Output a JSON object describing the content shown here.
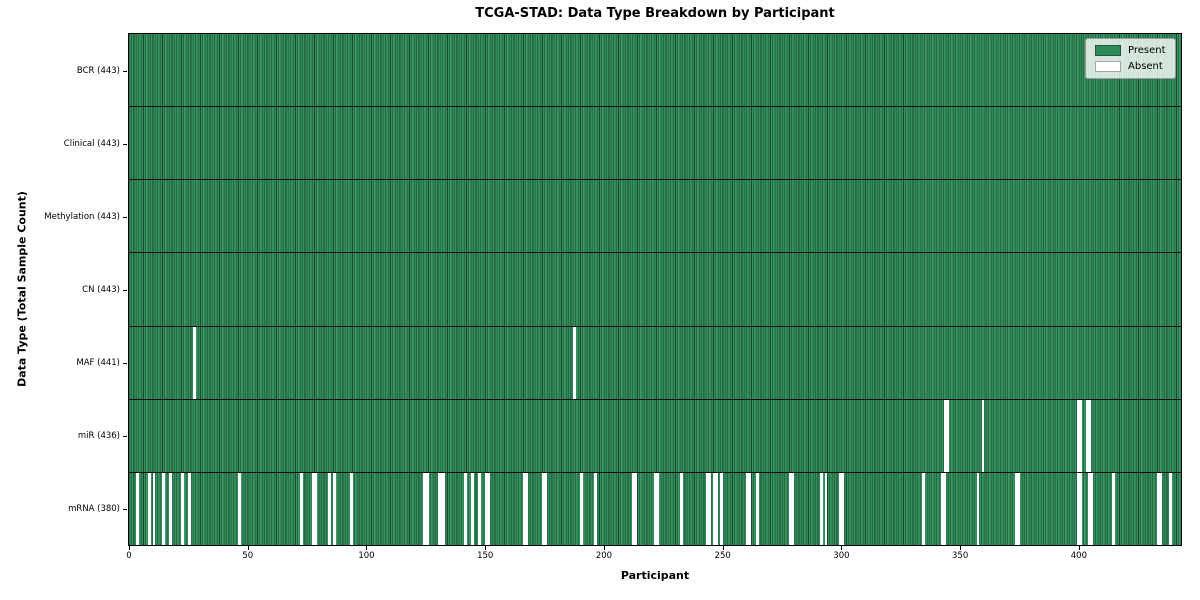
{
  "chart_data": {
    "type": "heatmap",
    "title": "TCGA-STAD: Data Type Breakdown by Participant",
    "xlabel": "Participant",
    "ylabel": "Data Type (Total Sample Count)",
    "n_participants": 443,
    "x_ticks": [
      0,
      50,
      100,
      150,
      200,
      250,
      300,
      350,
      400
    ],
    "xlim": [
      0,
      443
    ],
    "grid": false,
    "colors": {
      "present": "#2e8b57",
      "absent": "#ffffff",
      "bar_edge": "#123a24",
      "axis": "#000000"
    },
    "legend": {
      "position": "upper right",
      "entries": [
        {
          "label": "Present",
          "color": "#2e8b57"
        },
        {
          "label": "Absent",
          "color": "#ffffff"
        }
      ]
    },
    "rows": [
      {
        "name": "BCR",
        "label": "BCR (443)",
        "total": 443,
        "absent": []
      },
      {
        "name": "Clinical",
        "label": "Clinical (443)",
        "total": 443,
        "absent": []
      },
      {
        "name": "Methylation",
        "label": "Methylation (443)",
        "total": 443,
        "absent": []
      },
      {
        "name": "CN",
        "label": "CN (443)",
        "total": 443,
        "absent": []
      },
      {
        "name": "MAF",
        "label": "MAF (441)",
        "total": 441,
        "absent": [
          27,
          187
        ]
      },
      {
        "name": "miR",
        "label": "miR (436)",
        "total": 436,
        "absent": [
          343,
          344,
          359,
          399,
          400,
          403,
          404
        ]
      },
      {
        "name": "mRNA",
        "label": "mRNA (380)",
        "total": 380,
        "absent": [
          3,
          8,
          10,
          14,
          17,
          22,
          25,
          46,
          72,
          77,
          78,
          84,
          86,
          93,
          124,
          125,
          130,
          131,
          132,
          141,
          144,
          147,
          150,
          151,
          166,
          167,
          174,
          175,
          190,
          196,
          212,
          213,
          221,
          222,
          232,
          243,
          244,
          246,
          247,
          249,
          260,
          261,
          264,
          278,
          279,
          291,
          293,
          299,
          300,
          334,
          342,
          343,
          357,
          373,
          374,
          399,
          400,
          404,
          405,
          414,
          433,
          434,
          438
        ]
      }
    ]
  }
}
